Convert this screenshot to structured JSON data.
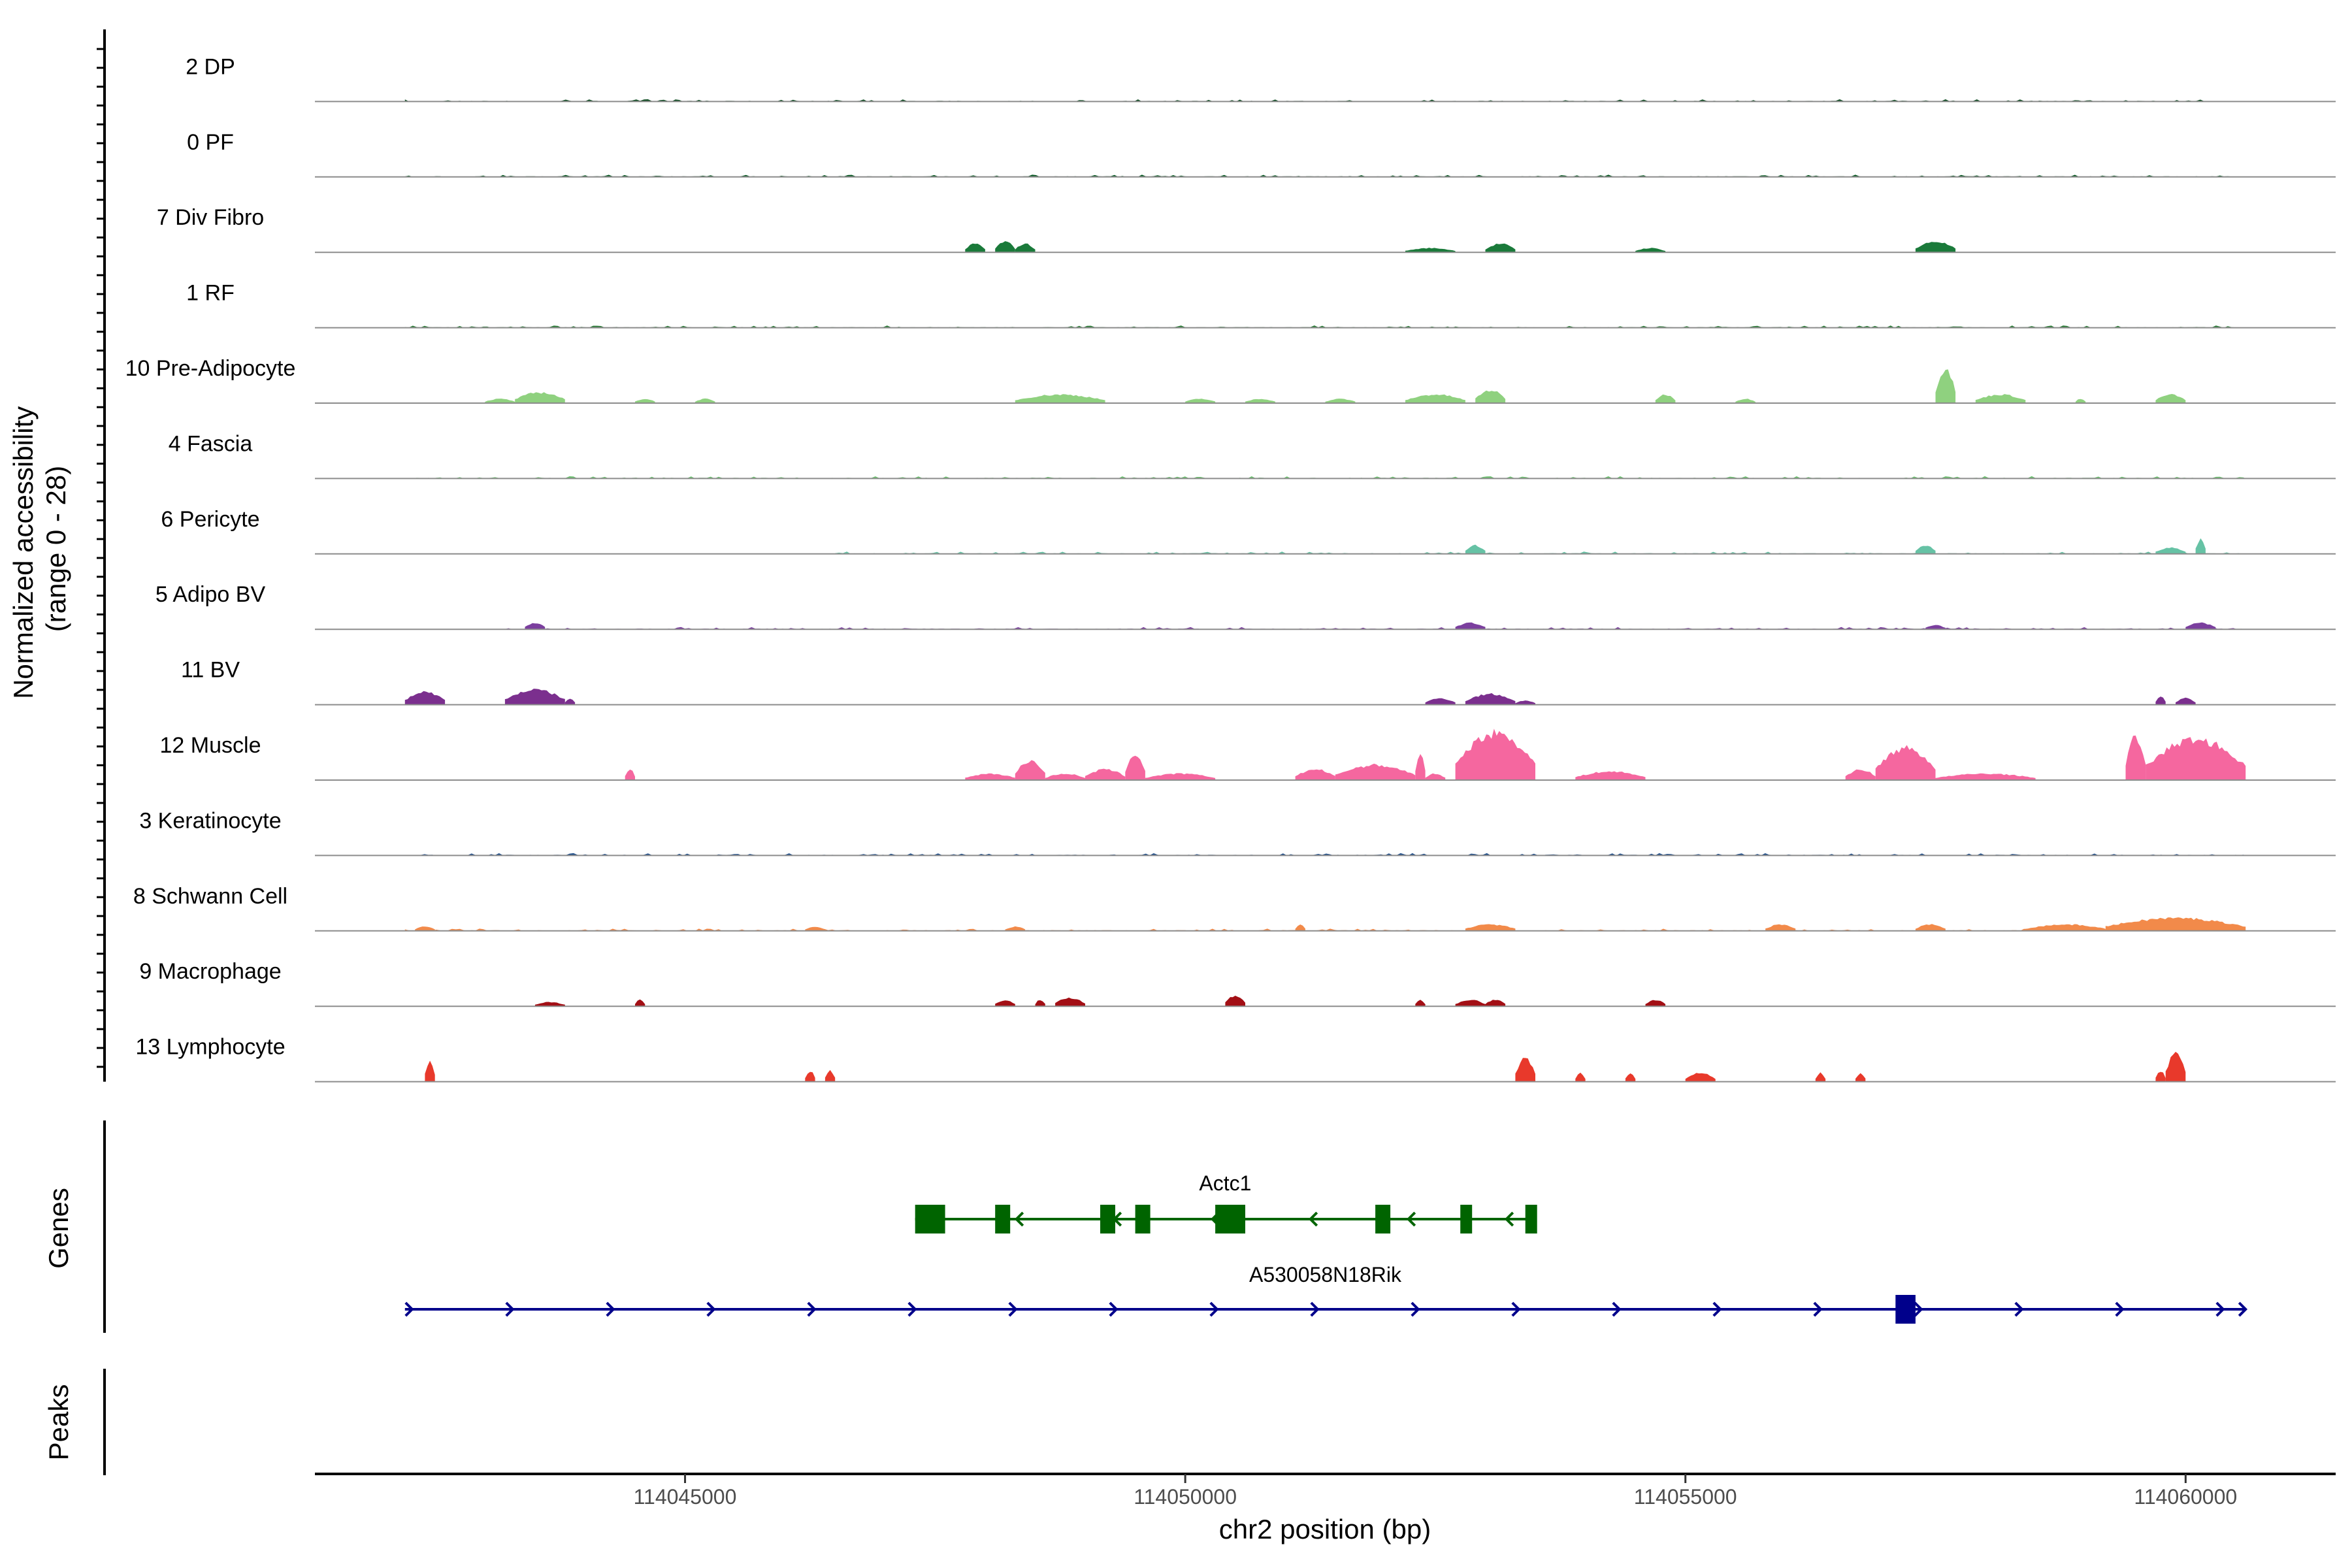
{
  "chart_data": {
    "type": "area",
    "title": "",
    "chromosome": "chr2",
    "xlabel": "chr2 position (bp)",
    "ylabel": "Normalized accessibility\n(range 0 - 28)",
    "y_range": [
      0,
      28
    ],
    "x_range": [
      114041300,
      114061500
    ],
    "x_ticks": [
      114045000,
      114050000,
      114055000,
      114060000
    ],
    "x_tick_labels": [
      "114045000",
      "114050000",
      "114055000",
      "114060000"
    ],
    "panel_titles": {
      "genes": "Genes",
      "peaks": "Peaks"
    },
    "tracks": [
      {
        "name": "2 DP",
        "color": "#0b4a1f",
        "style": "low",
        "regions": [
          [
            114042200,
            114060300
          ]
        ]
      },
      {
        "name": "0 PF",
        "color": "#0e5c28",
        "style": "low",
        "regions": [
          [
            114042200,
            114060600
          ]
        ]
      },
      {
        "name": "7 Div Fibro",
        "color": "#1a7a3a",
        "style": "peaks",
        "peaks": [
          [
            114047800,
            114048000,
            4
          ],
          [
            114048100,
            114048300,
            5
          ],
          [
            114048300,
            114048500,
            4
          ],
          [
            114052200,
            114052700,
            2
          ],
          [
            114053000,
            114053300,
            4
          ],
          [
            114054500,
            114054800,
            2
          ],
          [
            114057300,
            114057700,
            5
          ]
        ]
      },
      {
        "name": "1 RF",
        "color": "#2e7d3a",
        "style": "low",
        "regions": [
          [
            114042200,
            114060600
          ]
        ]
      },
      {
        "name": "10 Pre-Adipocyte",
        "color": "#8fd17f",
        "style": "peaks",
        "peaks": [
          [
            114043000,
            114043300,
            2
          ],
          [
            114043300,
            114043800,
            5
          ],
          [
            114044500,
            114044700,
            2
          ],
          [
            114045100,
            114045300,
            2
          ],
          [
            114048300,
            114049200,
            4
          ],
          [
            114050000,
            114050300,
            2
          ],
          [
            114050600,
            114050900,
            2
          ],
          [
            114051400,
            114051700,
            2
          ],
          [
            114052200,
            114052800,
            4
          ],
          [
            114052900,
            114053200,
            6
          ],
          [
            114054700,
            114054900,
            4
          ],
          [
            114055500,
            114055700,
            2
          ],
          [
            114057500,
            114057700,
            16
          ],
          [
            114057900,
            114058400,
            4
          ],
          [
            114058900,
            114059000,
            2
          ],
          [
            114059700,
            114060000,
            4
          ]
        ]
      },
      {
        "name": "4 Fascia",
        "color": "#6bbf6e",
        "style": "low",
        "regions": [
          [
            114042200,
            114060600
          ]
        ]
      },
      {
        "name": "6 Pericyte",
        "color": "#66c2a5",
        "style": "lowpeaks",
        "regions": [
          [
            114046500,
            114060600
          ]
        ],
        "peaks": [
          [
            114052800,
            114053000,
            4
          ],
          [
            114057300,
            114057500,
            4
          ],
          [
            114059700,
            114060000,
            3
          ],
          [
            114060100,
            114060200,
            7
          ]
        ]
      },
      {
        "name": "5 Adipo BV",
        "color": "#7b3f9e",
        "style": "lowpeaks",
        "regions": [
          [
            114043000,
            114060600
          ]
        ],
        "peaks": [
          [
            114043400,
            114043600,
            3
          ],
          [
            114052700,
            114053000,
            3
          ],
          [
            114057400,
            114057600,
            2
          ],
          [
            114060000,
            114060300,
            3
          ]
        ]
      },
      {
        "name": "11 BV",
        "color": "#7b2f8e",
        "style": "peaks",
        "peaks": [
          [
            114042200,
            114042600,
            6
          ],
          [
            114043200,
            114043800,
            7
          ],
          [
            114043800,
            114043900,
            3
          ],
          [
            114052400,
            114052700,
            3
          ],
          [
            114052800,
            114053300,
            5
          ],
          [
            114053300,
            114053500,
            2
          ],
          [
            114059700,
            114059800,
            4
          ],
          [
            114059900,
            114060100,
            3
          ]
        ]
      },
      {
        "name": "12 Muscle",
        "color": "#f5679f",
        "style": "peaks",
        "peaks": [
          [
            114044400,
            114044500,
            5
          ],
          [
            114047800,
            114048300,
            3
          ],
          [
            114048300,
            114048600,
            9
          ],
          [
            114048600,
            114049000,
            3
          ],
          [
            114049000,
            114049400,
            5
          ],
          [
            114049400,
            114049600,
            12
          ],
          [
            114049600,
            114050300,
            3
          ],
          [
            114051100,
            114051500,
            5
          ],
          [
            114051500,
            114052300,
            7
          ],
          [
            114052300,
            114052400,
            12
          ],
          [
            114052400,
            114052600,
            3
          ],
          [
            114052700,
            114053500,
            22
          ],
          [
            114053900,
            114054600,
            4
          ],
          [
            114056600,
            114056900,
            5
          ],
          [
            114056900,
            114057500,
            15
          ],
          [
            114057500,
            114058500,
            3
          ],
          [
            114059400,
            114059600,
            20
          ],
          [
            114059600,
            114060600,
            19
          ]
        ]
      },
      {
        "name": "3 Keratinocyte",
        "color": "#1f4e8a",
        "style": "low",
        "regions": [
          [
            114042200,
            114060600
          ]
        ]
      },
      {
        "name": "8 Schwann Cell",
        "color": "#f28a4a",
        "style": "lowpeaks",
        "regions": [
          [
            114042200,
            114060600
          ]
        ],
        "peaks": [
          [
            114042300,
            114042500,
            2
          ],
          [
            114046200,
            114046400,
            2
          ],
          [
            114048200,
            114048400,
            2
          ],
          [
            114051100,
            114051200,
            3
          ],
          [
            114052800,
            114053300,
            3
          ],
          [
            114055800,
            114056100,
            3
          ],
          [
            114057300,
            114057600,
            3
          ],
          [
            114058400,
            114059200,
            3
          ],
          [
            114059200,
            114060600,
            6
          ]
        ]
      },
      {
        "name": "9 Macrophage",
        "color": "#a30f15",
        "style": "peaks",
        "peaks": [
          [
            114043500,
            114043800,
            2
          ],
          [
            114044500,
            114044600,
            3
          ],
          [
            114048100,
            114048300,
            3
          ],
          [
            114048500,
            114048600,
            3
          ],
          [
            114048700,
            114049000,
            4
          ],
          [
            114050400,
            114050600,
            5
          ],
          [
            114052300,
            114052400,
            3
          ],
          [
            114052700,
            114053000,
            3
          ],
          [
            114053000,
            114053200,
            3
          ],
          [
            114054600,
            114054800,
            3
          ]
        ]
      },
      {
        "name": "13 Lymphocyte",
        "color": "#e8392b",
        "style": "peaks",
        "peaks": [
          [
            114042400,
            114042500,
            10
          ],
          [
            114046200,
            114046300,
            5
          ],
          [
            114046400,
            114046500,
            5
          ],
          [
            114053300,
            114053500,
            11
          ],
          [
            114053900,
            114054000,
            4
          ],
          [
            114054400,
            114054500,
            4
          ],
          [
            114055000,
            114055300,
            4
          ],
          [
            114056300,
            114056400,
            4
          ],
          [
            114056700,
            114056800,
            4
          ],
          [
            114059700,
            114059800,
            5
          ],
          [
            114059800,
            114060000,
            13
          ]
        ]
      }
    ],
    "genes": [
      {
        "name": "Actc1",
        "color": "#006400",
        "strand": "-",
        "start": 114047300,
        "end": 114053500,
        "exons": [
          [
            114047300,
            114047600
          ],
          [
            114048100,
            114048250
          ],
          [
            114049150,
            114049300
          ],
          [
            114049500,
            114049650
          ],
          [
            114050300,
            114050600
          ],
          [
            114051900,
            114052050
          ],
          [
            114052750,
            114052850
          ],
          [
            114053400,
            114053500
          ]
        ]
      },
      {
        "name": "A530058N18Rik",
        "color": "#00008b",
        "strand": "+",
        "start": 114042200,
        "end": 114060600,
        "exons": [
          [
            114057100,
            114057300
          ]
        ]
      }
    ],
    "peaks": []
  }
}
